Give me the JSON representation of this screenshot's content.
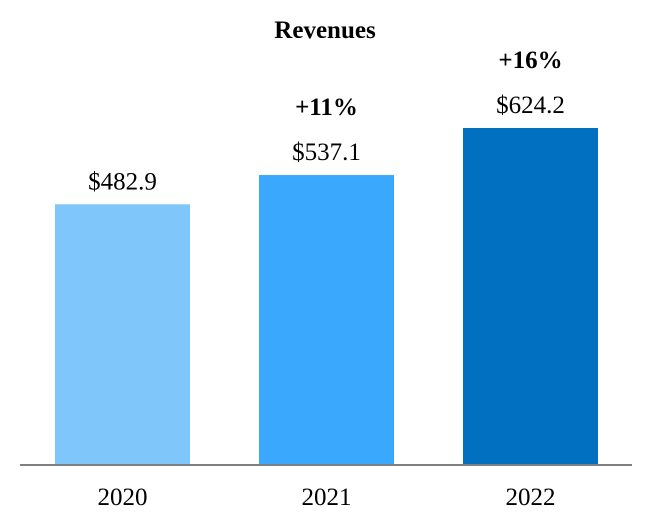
{
  "chart_data": {
    "type": "bar",
    "title": "Revenues",
    "categories": [
      "2020",
      "2021",
      "2022"
    ],
    "values": [
      482.9,
      537.1,
      624.2
    ],
    "value_labels": [
      "$482.9",
      "$537.1",
      "$624.2"
    ],
    "growth_labels": [
      "",
      "+11%",
      "+16%"
    ],
    "colors": [
      "#7fc6fb",
      "#3aa9fd",
      "#0270c1"
    ],
    "axis_color": "#7f7f7f",
    "xlabel": "",
    "ylabel": "",
    "ylim": [
      0,
      624.2
    ],
    "grid": false,
    "legend": "none"
  }
}
